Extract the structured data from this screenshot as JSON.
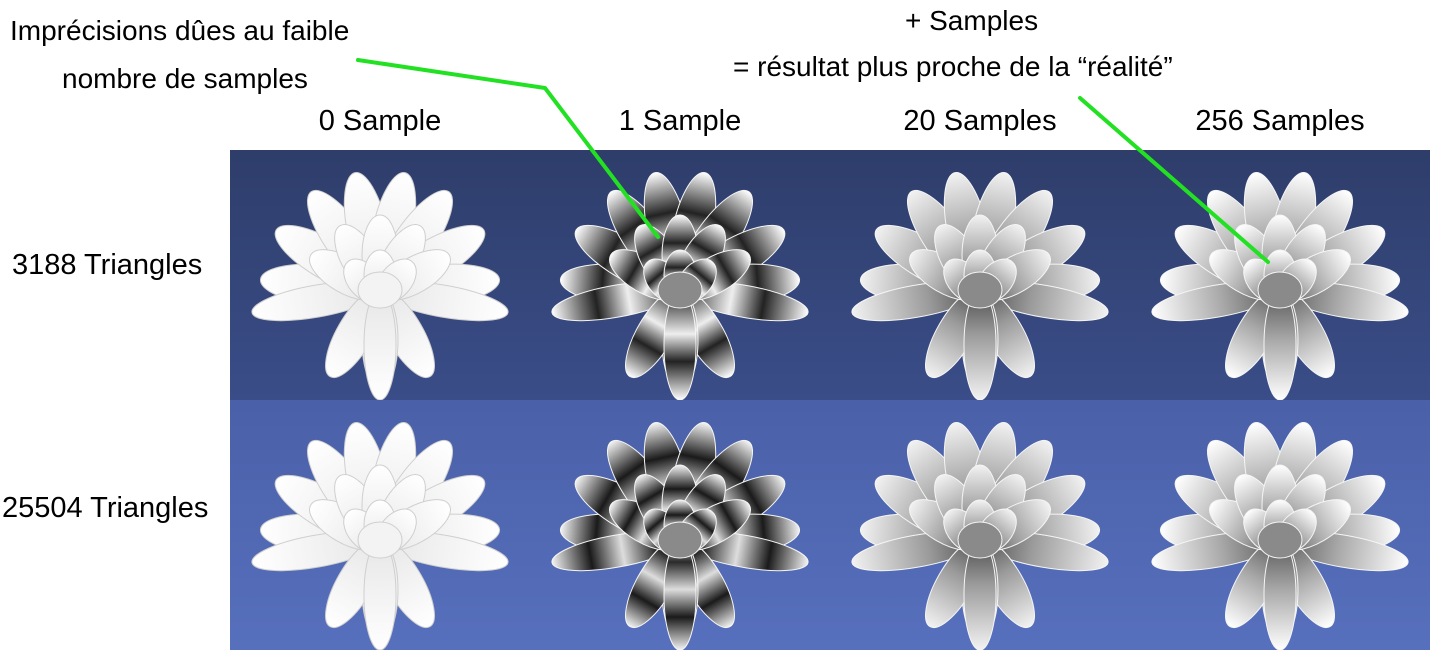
{
  "annotations": {
    "left_line1": "Imprécisions dûes au faible",
    "left_line2": "nombre de samples",
    "right_line1": "+ Samples",
    "right_line2": "= résultat plus proche de la “réalité”"
  },
  "columns": [
    "0 Sample",
    "1 Sample",
    "20 Samples",
    "256 Samples"
  ],
  "rows": [
    "3188 Triangles",
    "25504 Triangles"
  ],
  "colors": {
    "leader_line": "#22e022",
    "row_top_bg": "#34457a",
    "row_bottom_bg": "#5068b4"
  }
}
